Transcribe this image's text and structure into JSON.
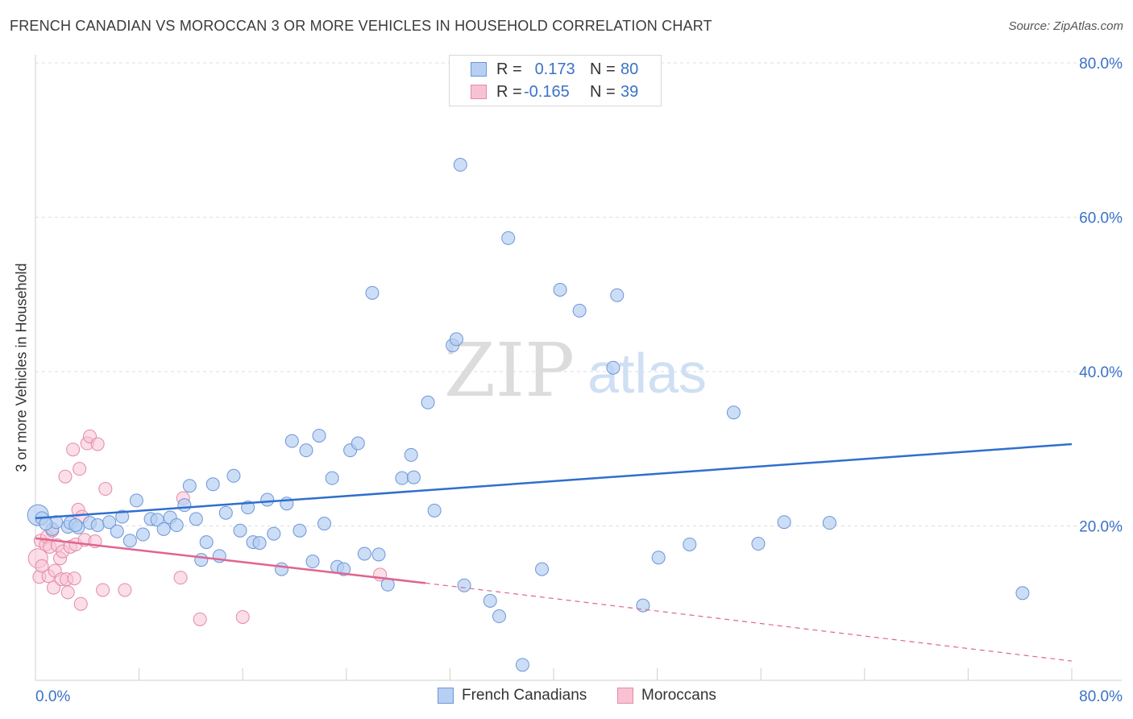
{
  "header": {
    "title": "FRENCH CANADIAN VS MOROCCAN 3 OR MORE VEHICLES IN HOUSEHOLD CORRELATION CHART",
    "source": "Source: ZipAtlas.com"
  },
  "watermark": {
    "zip": "ZIP",
    "atlas": "atlas"
  },
  "legend": {
    "rows": [
      {
        "r_label": "R =",
        "r_value": "0.173",
        "n_label": "N =",
        "n_value": "80"
      },
      {
        "r_label": "R =",
        "r_value": "-0.165",
        "n_label": "N =",
        "n_value": "39"
      }
    ]
  },
  "bottom_legend": {
    "blue_label": "French Canadians",
    "pink_label": "Moroccans"
  },
  "colors": {
    "blue_fill": "#b7cff2",
    "blue_stroke": "#6c96d8",
    "blue_line": "#2f6fce",
    "pink_fill": "#f7c3d3",
    "pink_stroke": "#e48aa8",
    "pink_line": "#e0648e",
    "tick_label": "#3a72c8"
  },
  "chart_data": {
    "type": "scatter",
    "title": "FRENCH CANADIAN VS MOROCCAN 3 OR MORE VEHICLES IN HOUSEHOLD CORRELATION CHART",
    "xlabel": "",
    "ylabel": "3 or more Vehicles in Household",
    "xlim": [
      0,
      80
    ],
    "ylim": [
      0,
      82
    ],
    "x_tick_labels": [
      "0.0%",
      "80.0%"
    ],
    "y_ticks": [
      20,
      40,
      60,
      80
    ],
    "y_tick_labels": [
      "20.0%",
      "40.0%",
      "60.0%",
      "80.0%"
    ],
    "grid": true,
    "series": [
      {
        "name": "French Canadians",
        "color": "#b7cff2",
        "points": [
          [
            0.2,
            21.4
          ],
          [
            0.5,
            21.0
          ],
          [
            1.3,
            19.6
          ],
          [
            1.6,
            20.5
          ],
          [
            2.5,
            19.9
          ],
          [
            2.7,
            20.4
          ],
          [
            3.3,
            19.8
          ],
          [
            4.2,
            20.4
          ],
          [
            4.8,
            20.1
          ],
          [
            5.7,
            20.5
          ],
          [
            6.3,
            19.3
          ],
          [
            6.7,
            21.2
          ],
          [
            7.3,
            18.1
          ],
          [
            7.8,
            23.3
          ],
          [
            8.3,
            18.9
          ],
          [
            8.9,
            20.9
          ],
          [
            9.4,
            20.8
          ],
          [
            9.9,
            19.6
          ],
          [
            10.4,
            21.1
          ],
          [
            10.9,
            20.1
          ],
          [
            11.5,
            22.7
          ],
          [
            11.9,
            25.2
          ],
          [
            12.4,
            20.9
          ],
          [
            12.8,
            15.6
          ],
          [
            13.2,
            17.9
          ],
          [
            13.7,
            25.4
          ],
          [
            14.2,
            16.1
          ],
          [
            14.7,
            21.7
          ],
          [
            15.3,
            26.5
          ],
          [
            15.8,
            19.4
          ],
          [
            16.4,
            22.4
          ],
          [
            16.8,
            17.9
          ],
          [
            17.3,
            17.8
          ],
          [
            17.9,
            23.4
          ],
          [
            18.4,
            19.0
          ],
          [
            19.0,
            14.4
          ],
          [
            19.4,
            22.9
          ],
          [
            19.8,
            31.0
          ],
          [
            20.4,
            19.4
          ],
          [
            20.9,
            29.8
          ],
          [
            21.4,
            15.4
          ],
          [
            21.9,
            31.7
          ],
          [
            22.3,
            20.3
          ],
          [
            22.9,
            26.2
          ],
          [
            23.3,
            14.7
          ],
          [
            23.8,
            14.4
          ],
          [
            24.3,
            29.8
          ],
          [
            24.9,
            30.7
          ],
          [
            25.4,
            16.4
          ],
          [
            26.0,
            50.2
          ],
          [
            26.5,
            16.3
          ],
          [
            27.2,
            12.4
          ],
          [
            28.3,
            26.2
          ],
          [
            29.0,
            29.2
          ],
          [
            29.2,
            26.3
          ],
          [
            30.3,
            36.0
          ],
          [
            30.8,
            22.0
          ],
          [
            32.2,
            43.4
          ],
          [
            32.5,
            44.2
          ],
          [
            32.8,
            66.8
          ],
          [
            33.1,
            12.3
          ],
          [
            35.1,
            10.3
          ],
          [
            35.8,
            8.3
          ],
          [
            36.5,
            57.3
          ],
          [
            37.6,
            2.0
          ],
          [
            39.1,
            14.4
          ],
          [
            40.5,
            50.6
          ],
          [
            42.0,
            47.9
          ],
          [
            44.6,
            40.5
          ],
          [
            44.9,
            49.9
          ],
          [
            46.9,
            9.7
          ],
          [
            48.1,
            15.9
          ],
          [
            50.5,
            17.6
          ],
          [
            53.9,
            34.7
          ],
          [
            55.8,
            17.7
          ],
          [
            57.8,
            20.5
          ],
          [
            61.3,
            20.4
          ],
          [
            76.2,
            11.3
          ],
          [
            0.8,
            20.3
          ],
          [
            3.1,
            20.1
          ]
        ]
      },
      {
        "name": "Moroccans",
        "color": "#f7c3d3",
        "points": [
          [
            0.2,
            15.8
          ],
          [
            0.3,
            13.4
          ],
          [
            0.4,
            18.1
          ],
          [
            0.5,
            14.8
          ],
          [
            0.8,
            17.6
          ],
          [
            0.9,
            18.6
          ],
          [
            1.0,
            13.5
          ],
          [
            1.1,
            17.3
          ],
          [
            1.3,
            19.4
          ],
          [
            1.4,
            12.0
          ],
          [
            1.5,
            14.2
          ],
          [
            1.7,
            17.5
          ],
          [
            1.9,
            15.8
          ],
          [
            2.0,
            13.1
          ],
          [
            2.1,
            16.7
          ],
          [
            2.3,
            26.4
          ],
          [
            2.4,
            13.1
          ],
          [
            2.5,
            11.4
          ],
          [
            2.7,
            17.3
          ],
          [
            2.9,
            29.9
          ],
          [
            3.0,
            13.2
          ],
          [
            3.1,
            17.6
          ],
          [
            3.3,
            22.1
          ],
          [
            3.4,
            27.4
          ],
          [
            3.5,
            9.9
          ],
          [
            3.6,
            21.2
          ],
          [
            3.8,
            18.2
          ],
          [
            4.0,
            30.7
          ],
          [
            4.2,
            31.6
          ],
          [
            4.6,
            18.0
          ],
          [
            4.8,
            30.6
          ],
          [
            5.2,
            11.7
          ],
          [
            5.4,
            24.8
          ],
          [
            6.9,
            11.7
          ],
          [
            11.2,
            13.3
          ],
          [
            11.4,
            23.6
          ],
          [
            12.7,
            7.9
          ],
          [
            16.0,
            8.2
          ],
          [
            26.6,
            13.7
          ]
        ]
      }
    ],
    "trend_lines": [
      {
        "series": "French Canadians",
        "x_start": 0,
        "y_start": 21.0,
        "x_end": 80,
        "y_end": 30.6
      },
      {
        "series": "Moroccans",
        "x_start": 0,
        "y_start": 18.4,
        "x_end": 30.1,
        "y_end": 12.6,
        "dashed_to_x": 80,
        "dashed_to_y": 2.5
      }
    ]
  }
}
